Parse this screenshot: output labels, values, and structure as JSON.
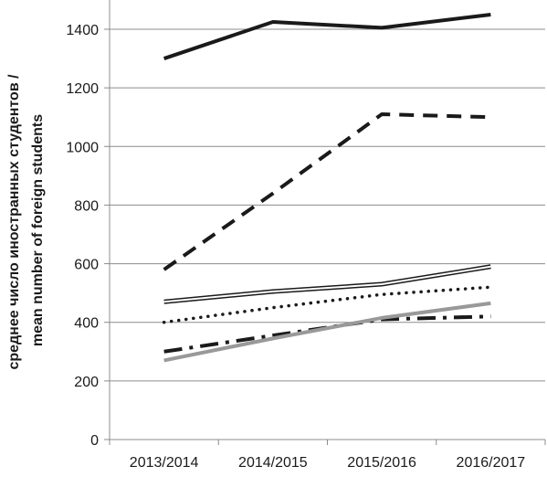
{
  "chart_data": {
    "type": "line",
    "categories": [
      "2013/2014",
      "2014/2015",
      "2015/2016",
      "2016/2017"
    ],
    "ylabel_lines": [
      "среднее число иностранных студентов /",
      "mean number of foreign students"
    ],
    "xlabel": "",
    "ylim": [
      0,
      1400
    ],
    "yticks": [
      0,
      200,
      400,
      600,
      800,
      1000,
      1200,
      1400
    ],
    "legend": "none",
    "grid": "horizontal",
    "series": [
      {
        "values": [
          1300,
          1425,
          1405,
          1450
        ],
        "color": "#1a1a1a",
        "style": "solid-thick"
      },
      {
        "values": [
          580,
          840,
          1110,
          1100
        ],
        "color": "#1a1a1a",
        "style": "dashed-thick"
      },
      {
        "values": [
          470,
          505,
          530,
          590
        ],
        "color": "#1a1a1a",
        "style": "double"
      },
      {
        "values": [
          400,
          450,
          495,
          520
        ],
        "color": "#1a1a1a",
        "style": "dotted"
      },
      {
        "values": [
          300,
          355,
          410,
          420
        ],
        "color": "#1a1a1a",
        "style": "dashdot-thick"
      },
      {
        "values": [
          270,
          345,
          415,
          465
        ],
        "color": "#999999",
        "style": "solid-gray"
      }
    ]
  }
}
